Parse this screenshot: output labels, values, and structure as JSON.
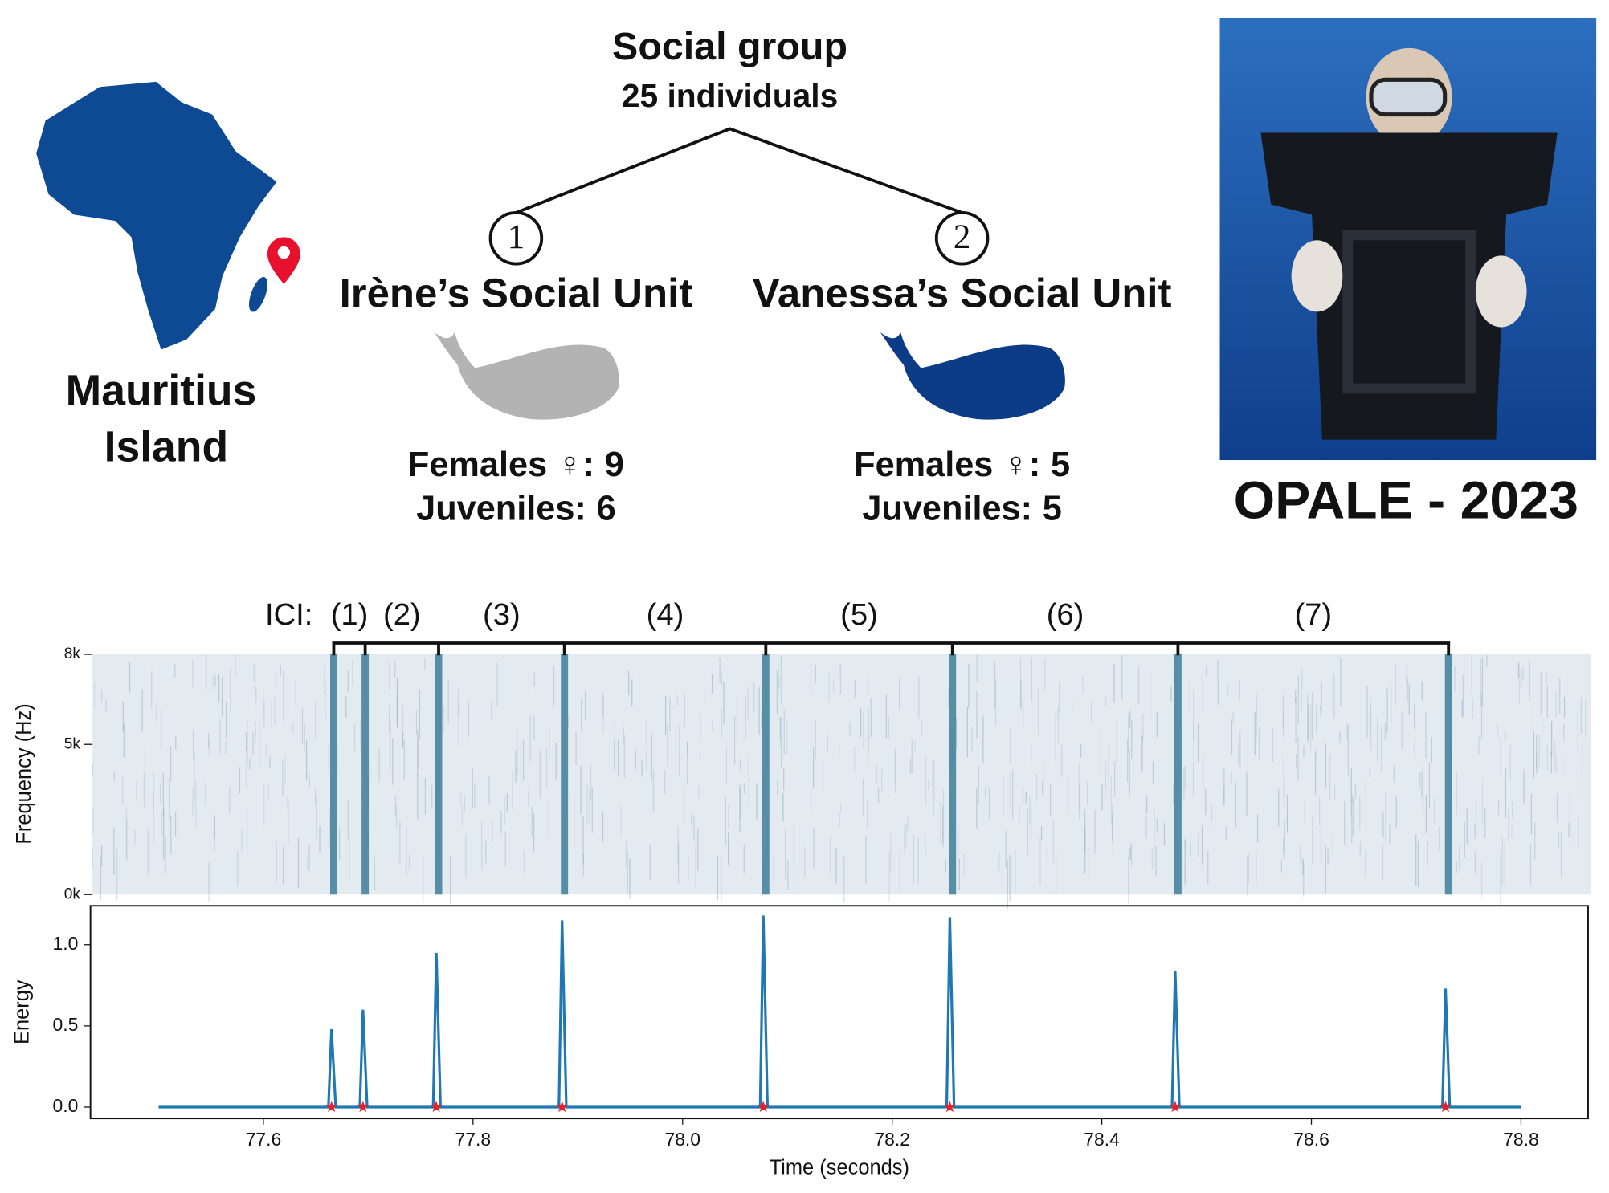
{
  "location": [
    "Mauritius",
    "Island"
  ],
  "tree": {
    "root": [
      "Social group",
      "25 individuals"
    ],
    "units": [
      {
        "number": 1,
        "name": "Irène’s Social Unit",
        "color": "#b3b3b3",
        "females_label": "Females ♀:",
        "females": 9,
        "juveniles_label": "Juveniles:",
        "juveniles": 6
      },
      {
        "number": 2,
        "name": "Vanessa’s Social Unit",
        "color": "#0d3c86",
        "females_label": "Females ♀:",
        "females": 5,
        "juveniles_label": "Juveniles:",
        "juveniles": 5
      }
    ]
  },
  "photo": {
    "caption": "OPALE - 2023"
  },
  "chart_data": [
    {
      "type": "spectrogram",
      "ylabel": "Frequency (Hz)",
      "xlim": [
        77.435,
        78.864
      ],
      "ylim": [
        0,
        8000
      ],
      "yticks": [
        {
          "value": 0,
          "label": "0k"
        },
        {
          "value": 5000,
          "label": "5k"
        },
        {
          "value": 8000,
          "label": "8k"
        }
      ],
      "clicks": [
        77.665,
        77.695,
        77.765,
        77.885,
        78.077,
        78.255,
        78.47,
        78.728
      ],
      "color": "#3f7c99",
      "ici_title": "ICI:",
      "ici_labels": [
        "(1)",
        "(2)",
        "(3)",
        "(4)",
        "(5)",
        "(6)",
        "(7)"
      ]
    },
    {
      "type": "line",
      "xlabel": "Time (seconds)",
      "ylabel": "Energy",
      "xlim": [
        77.435,
        78.864
      ],
      "ylim": [
        -0.07,
        1.24
      ],
      "xticks": [
        77.6,
        77.8,
        {
          "value": 78,
          "label": "78.0"
        },
        78.2,
        78.4,
        78.6,
        78.8
      ],
      "yticks": [
        {
          "value": 0,
          "label": "0.0"
        },
        0.5,
        {
          "value": 1,
          "label": "1.0"
        }
      ],
      "series": [
        {
          "color": "#1f77b4",
          "x": [
            77.5,
            77.662,
            77.665,
            77.669,
            77.692,
            77.695,
            77.699,
            77.762,
            77.765,
            77.769,
            77.882,
            77.885,
            77.889,
            78.074,
            78.077,
            78.081,
            78.252,
            78.255,
            78.259,
            78.467,
            78.47,
            78.474,
            78.725,
            78.728,
            78.732,
            78.8
          ],
          "values": [
            0,
            0,
            0.48,
            0,
            0,
            0.6,
            0,
            0,
            0.95,
            0,
            0,
            1.15,
            0,
            0,
            1.18,
            0,
            0,
            1.17,
            0,
            0,
            0.84,
            0,
            0,
            0.73,
            0,
            0
          ]
        }
      ],
      "markers": {
        "color": "#e8202a",
        "x": [
          77.665,
          77.695,
          77.765,
          77.885,
          78.077,
          78.255,
          78.47,
          78.728
        ],
        "values": [
          0,
          0,
          0,
          0,
          0,
          0,
          0,
          0
        ]
      }
    }
  ]
}
